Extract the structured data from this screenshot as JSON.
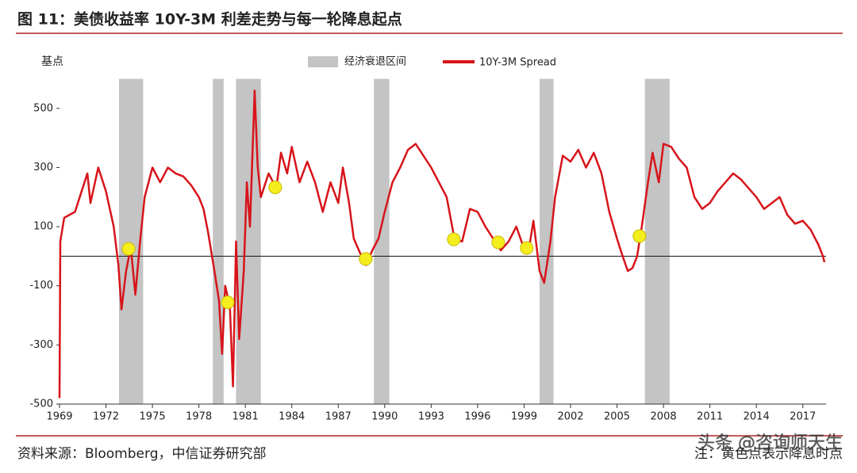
{
  "chart_data": {
    "type": "line",
    "title": "图 11：美债收益率 10Y-3M 利差走势与每一轮降息起点",
    "y_label": "基点",
    "series": [
      {
        "name": "10Y-3M Spread",
        "color": "#d7141a",
        "x": [
          1969.0,
          1969.05,
          1969.3,
          1970,
          1970.8,
          1971,
          1971.5,
          1972,
          1972.5,
          1972.8,
          1973,
          1973.3,
          1973.6,
          1973.9,
          1974.2,
          1974.5,
          1975,
          1975.5,
          1976,
          1976.5,
          1977,
          1977.5,
          1978,
          1978.3,
          1978.6,
          1979,
          1979.3,
          1979.5,
          1979.7,
          1980,
          1980.2,
          1980.4,
          1980.6,
          1980.9,
          1981.1,
          1981.3,
          1981.6,
          1981.8,
          1982,
          1982.5,
          1983,
          1983.3,
          1983.7,
          1984,
          1984.5,
          1985,
          1985.5,
          1986,
          1986.5,
          1987,
          1987.3,
          1987.7,
          1988,
          1988.5,
          1988.8,
          1989.2,
          1989.6,
          1990,
          1990.5,
          1991,
          1991.5,
          1992,
          1992.5,
          1993,
          1993.5,
          1994,
          1994.5,
          1995,
          1995.5,
          1996,
          1996.5,
          1997,
          1997.5,
          1998,
          1998.5,
          1998.9,
          1999.3,
          1999.6,
          2000,
          2000.3,
          2000.7,
          2001,
          2001.5,
          2002,
          2002.5,
          2003,
          2003.5,
          2004,
          2004.5,
          2005,
          2005.3,
          2005.7,
          2006,
          2006.3,
          2006.6,
          2007,
          2007.3,
          2007.7,
          2008,
          2008.5,
          2009,
          2009.5,
          2010,
          2010.5,
          2011,
          2011.5,
          2012,
          2012.5,
          2013,
          2013.5,
          2014,
          2014.5,
          2015,
          2015.5,
          2016,
          2016.5,
          2017,
          2017.5,
          2018,
          2018.3,
          2018.4
        ],
        "values": [
          -480,
          50,
          130,
          150,
          280,
          180,
          300,
          220,
          100,
          -30,
          -180,
          -50,
          30,
          -130,
          50,
          200,
          300,
          250,
          300,
          280,
          270,
          240,
          200,
          160,
          80,
          -50,
          -150,
          -330,
          -100,
          -170,
          -440,
          50,
          -280,
          -50,
          250,
          100,
          560,
          300,
          200,
          280,
          230,
          350,
          280,
          370,
          250,
          320,
          250,
          150,
          250,
          180,
          300,
          180,
          60,
          0,
          -30,
          20,
          60,
          150,
          250,
          300,
          360,
          380,
          340,
          300,
          250,
          200,
          60,
          50,
          160,
          150,
          100,
          60,
          20,
          50,
          100,
          40,
          20,
          120,
          -50,
          -90,
          50,
          200,
          340,
          320,
          360,
          300,
          350,
          280,
          150,
          60,
          10,
          -50,
          -40,
          0,
          100,
          250,
          350,
          250,
          380,
          370,
          330,
          300,
          200,
          160,
          180,
          220,
          250,
          280,
          260,
          230,
          200,
          160,
          180,
          200,
          140,
          110,
          120,
          90,
          40,
          0,
          -20
        ]
      }
    ],
    "recession_name": "经济衰退区间",
    "recession_color": "#c4c4c4",
    "recessions": [
      [
        1972.84,
        1974.4
      ],
      [
        1978.9,
        1979.6
      ],
      [
        1980.4,
        1982.0
      ],
      [
        1989.3,
        1990.3
      ],
      [
        2000.0,
        2000.9
      ],
      [
        2006.8,
        2008.4
      ]
    ],
    "points": {
      "color": "#f5ee1e",
      "x": [
        1973.46,
        1979.86,
        1982.93,
        1988.77,
        1994.46,
        1997.33,
        1999.17,
        2006.45
      ],
      "values": [
        25,
        -156,
        233,
        -9,
        57,
        47,
        28,
        68
      ]
    },
    "xlim": [
      1969,
      2018.5
    ],
    "xticks": [
      1969,
      1972,
      1975,
      1978,
      1981,
      1984,
      1987,
      1990,
      1993,
      1996,
      1999,
      2002,
      2005,
      2008,
      2011,
      2014,
      2017
    ],
    "ylim": [
      -500,
      600
    ],
    "yticks": [
      -500,
      -300,
      -100,
      100,
      300,
      500
    ]
  },
  "footer": {
    "source": "资料来源：Bloomberg，中信证券研究部",
    "note": "注：黄色点表示降息时点",
    "watermark": "头条 @咨询师天生"
  }
}
